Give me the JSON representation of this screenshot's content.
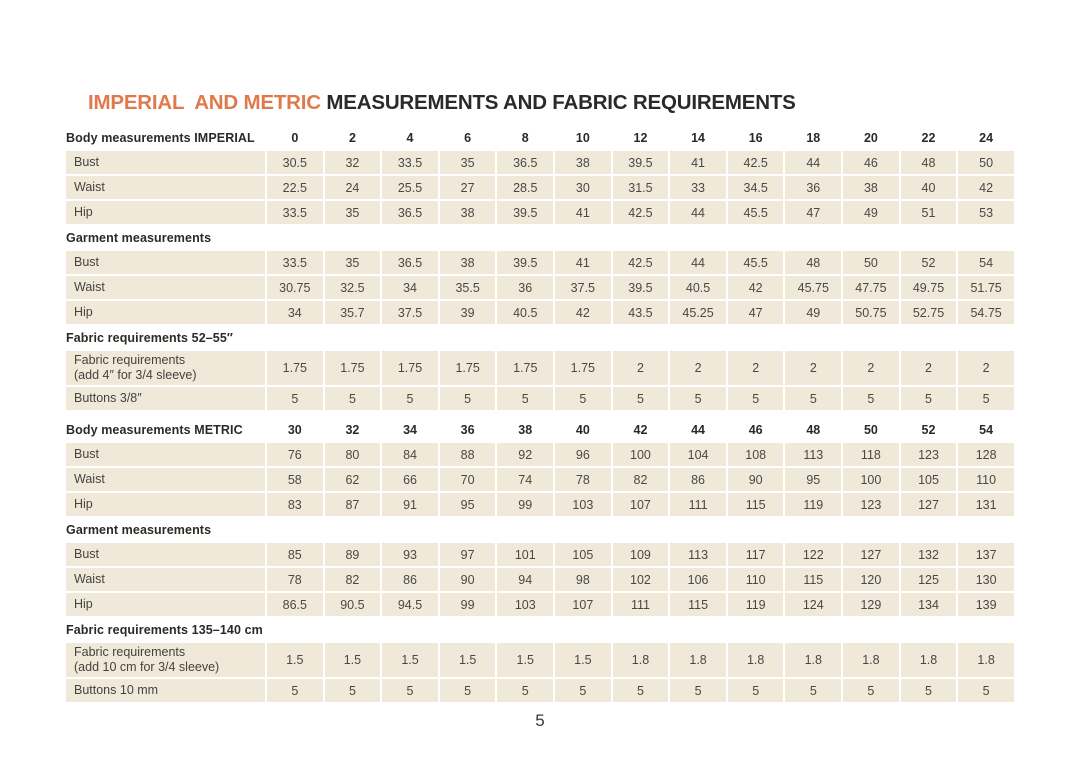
{
  "page": {
    "title_highlight": "IMPERIAL  AND METRIC",
    "title_rest": " MEASUREMENTS AND FABRIC REQUIREMENTS",
    "page_number": "5"
  },
  "theme": {
    "accent_color": "#e07a4c",
    "cell_background": "#f0e9da",
    "heading_text_color": "#2b2a28",
    "value_text_color": "#4a4846"
  },
  "table": {
    "sections": [
      {
        "header": "Body measurements IMPERIAL",
        "sizes": [
          "0",
          "2",
          "4",
          "6",
          "8",
          "10",
          "12",
          "14",
          "16",
          "18",
          "20",
          "22",
          "24"
        ],
        "rows": [
          {
            "label": "Bust",
            "values": [
              "30.5",
              "32",
              "33.5",
              "35",
              "36.5",
              "38",
              "39.5",
              "41",
              "42.5",
              "44",
              "46",
              "48",
              "50"
            ]
          },
          {
            "label": "Waist",
            "values": [
              "22.5",
              "24",
              "25.5",
              "27",
              "28.5",
              "30",
              "31.5",
              "33",
              "34.5",
              "36",
              "38",
              "40",
              "42"
            ]
          },
          {
            "label": "Hip",
            "values": [
              "33.5",
              "35",
              "36.5",
              "38",
              "39.5",
              "41",
              "42.5",
              "44",
              "45.5",
              "47",
              "49",
              "51",
              "53"
            ]
          }
        ]
      },
      {
        "header": "Garment measurements",
        "rows": [
          {
            "label": "Bust",
            "values": [
              "33.5",
              "35",
              "36.5",
              "38",
              "39.5",
              "41",
              "42.5",
              "44",
              "45.5",
              "48",
              "50",
              "52",
              "54"
            ]
          },
          {
            "label": "Waist",
            "values": [
              "30.75",
              "32.5",
              "34",
              "35.5",
              "36",
              "37.5",
              "39.5",
              "40.5",
              "42",
              "45.75",
              "47.75",
              "49.75",
              "51.75"
            ]
          },
          {
            "label": "Hip",
            "values": [
              "34",
              "35.7",
              "37.5",
              "39",
              "40.5",
              "42",
              "43.5",
              "45.25",
              "47",
              "49",
              "50.75",
              "52.75",
              "54.75"
            ]
          }
        ]
      },
      {
        "header": "Fabric requirements 52–55″",
        "rows": [
          {
            "label": "Fabric requirements",
            "sublabel": "(add 4″ for 3/4 sleeve)",
            "values": [
              "1.75",
              "1.75",
              "1.75",
              "1.75",
              "1.75",
              "1.75",
              "2",
              "2",
              "2",
              "2",
              "2",
              "2",
              "2"
            ]
          },
          {
            "label": "Buttons 3/8″",
            "values": [
              "5",
              "5",
              "5",
              "5",
              "5",
              "5",
              "5",
              "5",
              "5",
              "5",
              "5",
              "5",
              "5"
            ]
          }
        ]
      },
      {
        "header": "Body measurements METRIC",
        "sizes": [
          "30",
          "32",
          "34",
          "36",
          "38",
          "40",
          "42",
          "44",
          "46",
          "48",
          "50",
          "52",
          "54"
        ],
        "rows": [
          {
            "label": "Bust",
            "values": [
              "76",
              "80",
              "84",
              "88",
              "92",
              "96",
              "100",
              "104",
              "108",
              "113",
              "118",
              "123",
              "128"
            ]
          },
          {
            "label": "Waist",
            "values": [
              "58",
              "62",
              "66",
              "70",
              "74",
              "78",
              "82",
              "86",
              "90",
              "95",
              "100",
              "105",
              "110"
            ]
          },
          {
            "label": "Hip",
            "values": [
              "83",
              "87",
              "91",
              "95",
              "99",
              "103",
              "107",
              "111",
              "115",
              "119",
              "123",
              "127",
              "131"
            ]
          }
        ]
      },
      {
        "header": "Garment measurements",
        "rows": [
          {
            "label": "Bust",
            "values": [
              "85",
              "89",
              "93",
              "97",
              "101",
              "105",
              "109",
              "113",
              "117",
              "122",
              "127",
              "132",
              "137"
            ]
          },
          {
            "label": "Waist",
            "values": [
              "78",
              "82",
              "86",
              "90",
              "94",
              "98",
              "102",
              "106",
              "110",
              "115",
              "120",
              "125",
              "130"
            ]
          },
          {
            "label": "Hip",
            "values": [
              "86.5",
              "90.5",
              "94.5",
              "99",
              "103",
              "107",
              "111",
              "115",
              "119",
              "124",
              "129",
              "134",
              "139"
            ]
          }
        ]
      },
      {
        "header": "Fabric requirements 135–140 cm",
        "rows": [
          {
            "label": "Fabric requirements",
            "sublabel": "(add 10 cm for 3/4 sleeve)",
            "values": [
              "1.5",
              "1.5",
              "1.5",
              "1.5",
              "1.5",
              "1.5",
              "1.8",
              "1.8",
              "1.8",
              "1.8",
              "1.8",
              "1.8",
              "1.8"
            ]
          },
          {
            "label": "Buttons 10 mm",
            "values": [
              "5",
              "5",
              "5",
              "5",
              "5",
              "5",
              "5",
              "5",
              "5",
              "5",
              "5",
              "5",
              "5"
            ]
          }
        ]
      }
    ]
  }
}
